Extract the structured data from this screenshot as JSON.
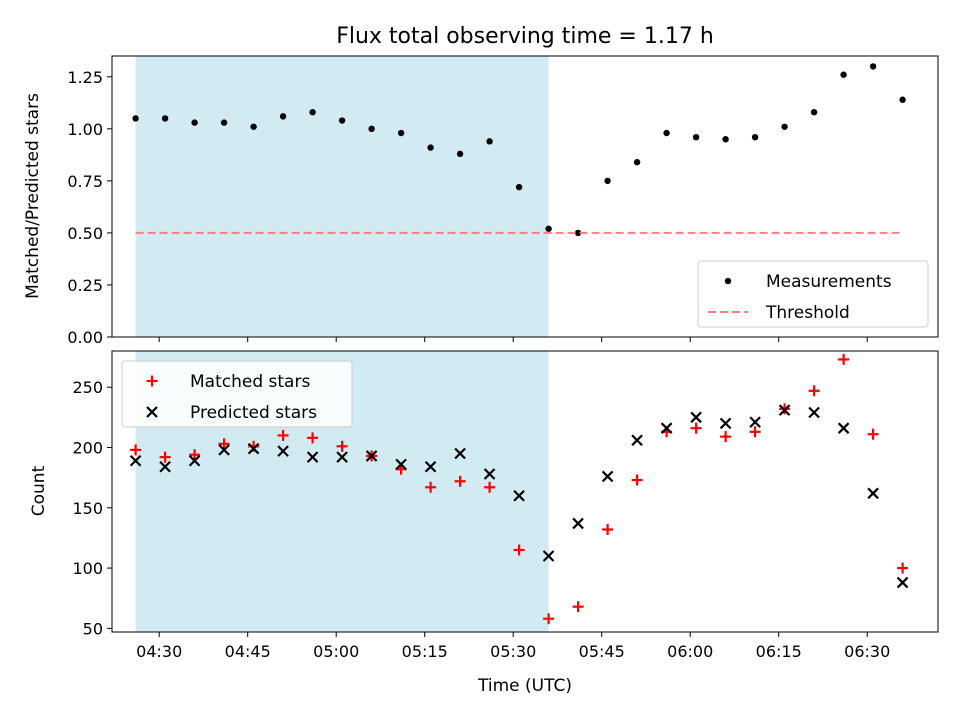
{
  "figure": {
    "title": "Flux total observing time = 1.17 h"
  },
  "chart_data": [
    {
      "type": "scatter",
      "ylabel": "Matched/Predicted stars",
      "xlabel": "",
      "x_range": [
        "04:22",
        "06:42"
      ],
      "ylim": [
        0,
        1.35
      ],
      "y_ticks": [
        "0.00",
        "0.25",
        "0.50",
        "0.75",
        "1.00",
        "1.25"
      ],
      "shaded_interval": [
        "04:26",
        "05:36"
      ],
      "shaded_color": "#add8e6",
      "legend_position": "lower right",
      "series": [
        {
          "name": "Measurements",
          "marker": "dot",
          "color": "#000000",
          "points": [
            [
              "04:26",
              1.05
            ],
            [
              "04:31",
              1.05
            ],
            [
              "04:36",
              1.03
            ],
            [
              "04:41",
              1.03
            ],
            [
              "04:46",
              1.01
            ],
            [
              "04:51",
              1.06
            ],
            [
              "04:56",
              1.08
            ],
            [
              "05:01",
              1.04
            ],
            [
              "05:06",
              1.0
            ],
            [
              "05:11",
              0.98
            ],
            [
              "05:16",
              0.91
            ],
            [
              "05:21",
              0.88
            ],
            [
              "05:26",
              0.94
            ],
            [
              "05:31",
              0.72
            ],
            [
              "05:36",
              0.52
            ],
            [
              "05:41",
              0.5
            ],
            [
              "05:46",
              0.75
            ],
            [
              "05:51",
              0.84
            ],
            [
              "05:56",
              0.98
            ],
            [
              "06:01",
              0.96
            ],
            [
              "06:06",
              0.95
            ],
            [
              "06:11",
              0.96
            ],
            [
              "06:16",
              1.01
            ],
            [
              "06:21",
              1.08
            ],
            [
              "06:26",
              1.26
            ],
            [
              "06:31",
              1.3
            ],
            [
              "06:36",
              1.14
            ]
          ]
        },
        {
          "name": "Threshold",
          "marker": "dashed-line",
          "color": "#ff7f7f",
          "points": [
            [
              "04:26",
              0.5
            ],
            [
              "06:36",
              0.5
            ]
          ]
        }
      ]
    },
    {
      "type": "scatter",
      "ylabel": "Count",
      "xlabel": "Time (UTC)",
      "x_range": [
        "04:22",
        "06:42"
      ],
      "x_ticks": [
        "04:30",
        "04:45",
        "05:00",
        "05:15",
        "05:30",
        "05:45",
        "06:00",
        "06:15",
        "06:30"
      ],
      "ylim": [
        47,
        280
      ],
      "y_ticks": [
        "50",
        "100",
        "150",
        "200",
        "250"
      ],
      "shaded_interval": [
        "04:26",
        "05:36"
      ],
      "shaded_color": "#add8e6",
      "legend_position": "upper left",
      "series": [
        {
          "name": "Matched stars",
          "marker": "plus",
          "color": "#ff0000",
          "points": [
            [
              "04:26",
              198
            ],
            [
              "04:31",
              192
            ],
            [
              "04:36",
              194
            ],
            [
              "04:41",
              203
            ],
            [
              "04:46",
              201
            ],
            [
              "04:51",
              210
            ],
            [
              "04:56",
              208
            ],
            [
              "05:01",
              201
            ],
            [
              "05:06",
              193
            ],
            [
              "05:11",
              182
            ],
            [
              "05:16",
              167
            ],
            [
              "05:21",
              172
            ],
            [
              "05:26",
              167
            ],
            [
              "05:31",
              115
            ],
            [
              "05:36",
              58
            ],
            [
              "05:41",
              68
            ],
            [
              "05:46",
              132
            ],
            [
              "05:51",
              173
            ],
            [
              "05:56",
              213
            ],
            [
              "06:01",
              216
            ],
            [
              "06:06",
              209
            ],
            [
              "06:11",
              213
            ],
            [
              "06:16",
              232
            ],
            [
              "06:21",
              247
            ],
            [
              "06:26",
              273
            ],
            [
              "06:31",
              211
            ],
            [
              "06:36",
              100
            ]
          ]
        },
        {
          "name": "Predicted stars",
          "marker": "x",
          "color": "#000000",
          "points": [
            [
              "04:26",
              189
            ],
            [
              "04:31",
              184
            ],
            [
              "04:36",
              189
            ],
            [
              "04:41",
              198
            ],
            [
              "04:46",
              199
            ],
            [
              "04:51",
              197
            ],
            [
              "04:56",
              192
            ],
            [
              "05:01",
              192
            ],
            [
              "05:06",
              193
            ],
            [
              "05:11",
              186
            ],
            [
              "05:16",
              184
            ],
            [
              "05:21",
              195
            ],
            [
              "05:26",
              178
            ],
            [
              "05:31",
              160
            ],
            [
              "05:36",
              110
            ],
            [
              "05:41",
              137
            ],
            [
              "05:46",
              176
            ],
            [
              "05:51",
              206
            ],
            [
              "05:56",
              216
            ],
            [
              "06:01",
              225
            ],
            [
              "06:06",
              220
            ],
            [
              "06:11",
              221
            ],
            [
              "06:16",
              231
            ],
            [
              "06:21",
              229
            ],
            [
              "06:26",
              216
            ],
            [
              "06:31",
              162
            ],
            [
              "06:36",
              88
            ]
          ]
        }
      ]
    }
  ]
}
